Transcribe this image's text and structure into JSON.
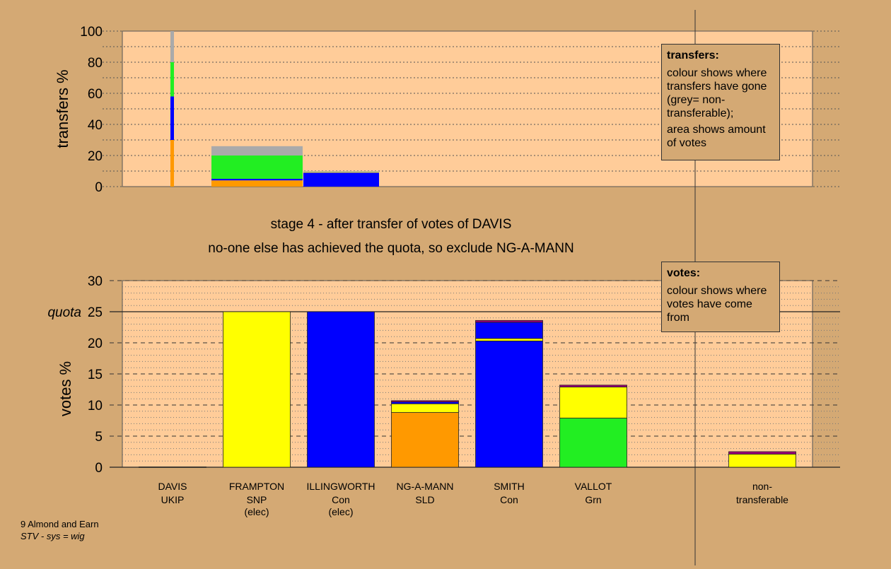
{
  "colors": {
    "page_bg": "#d4a974",
    "plot_bg": "#ffcc99",
    "UKIP": "#a0007a",
    "SNP": "#ffff00",
    "Con": "#0000ff",
    "SLD": "#ff9900",
    "Grn": "#22ee22",
    "non_transferable": "#aaaaaa"
  },
  "headline": {
    "line1": "stage 4 - after transfer of votes of DAVIS",
    "line2": "no-one else has achieved the quota, so exclude NG-A-MANN"
  },
  "transfers_box": {
    "title": "transfers:",
    "text1": "colour shows where transfers have gone (grey= non-transferable);",
    "text2": "area shows amount of votes"
  },
  "votes_box": {
    "title": "votes:",
    "text1": "colour shows where votes have come from"
  },
  "footer": {
    "ward": "9 Almond and Earn",
    "system": "STV - sys = wig"
  },
  "chart_data": [
    {
      "type": "bar",
      "subtype": "stacked-transfers",
      "ylabel": "transfers %",
      "ylim": [
        0,
        100
      ],
      "yticks": [
        0,
        20,
        40,
        60,
        80,
        100
      ],
      "grid": true,
      "bars": [
        {
          "label": "DAVIS",
          "segments": [
            {
              "party": "SLD",
              "value": 30
            },
            {
              "party": "Con",
              "value": 28
            },
            {
              "party": "Grn",
              "value": 22
            },
            {
              "party": "non_transferable",
              "value": 20
            }
          ]
        },
        {
          "label": "FRAMPTON",
          "segments": [
            {
              "party": "SLD",
              "value": 4
            },
            {
              "party": "Con",
              "value": 1
            },
            {
              "party": "Grn",
              "value": 15
            },
            {
              "party": "non_transferable",
              "value": 6
            }
          ]
        },
        {
          "label": "ILLINGWORTH",
          "segments": [
            {
              "party": "Con",
              "value": 9
            },
            {
              "party": "SNP",
              "value": 0.4
            },
            {
              "party": "non_transferable",
              "value": 0.6
            }
          ]
        }
      ]
    },
    {
      "type": "bar",
      "subtype": "stacked-votes",
      "ylabel": "votes %",
      "ylim": [
        0,
        30
      ],
      "yticks": [
        0,
        5,
        10,
        15,
        20,
        25,
        30
      ],
      "quota": 25,
      "quota_label": "quota",
      "grid": true,
      "categories": [
        {
          "name": "DAVIS",
          "party": "UKIP",
          "note": ""
        },
        {
          "name": "FRAMPTON",
          "party": "SNP",
          "note": "(elec)"
        },
        {
          "name": "ILLINGWORTH",
          "party": "Con",
          "note": "(elec)"
        },
        {
          "name": "NG-A-MANN",
          "party": "SLD",
          "note": ""
        },
        {
          "name": "SMITH",
          "party": "Con",
          "note": ""
        },
        {
          "name": "VALLOT",
          "party": "Grn",
          "note": ""
        },
        {
          "name": "non-",
          "party": "transferable",
          "note": ""
        }
      ],
      "stacks": [
        [
          {
            "party": "UKIP",
            "value": 0.05
          }
        ],
        [
          {
            "party": "SNP",
            "value": 25
          }
        ],
        [
          {
            "party": "Con",
            "value": 25
          }
        ],
        [
          {
            "party": "SLD",
            "value": 8.8
          },
          {
            "party": "SNP",
            "value": 1.4
          },
          {
            "party": "Con",
            "value": 0.3
          },
          {
            "party": "UKIP",
            "value": 0.2
          }
        ],
        [
          {
            "party": "Con",
            "value": 20.3
          },
          {
            "party": "SNP",
            "value": 0.4
          },
          {
            "party": "Con",
            "value": 2.6
          },
          {
            "party": "UKIP",
            "value": 0.3
          }
        ],
        [
          {
            "party": "Grn",
            "value": 7.9
          },
          {
            "party": "SNP",
            "value": 5.0
          },
          {
            "party": "UKIP",
            "value": 0.3
          }
        ],
        [
          {
            "party": "SNP",
            "value": 2.1
          },
          {
            "party": "UKIP",
            "value": 0.4
          }
        ]
      ]
    }
  ]
}
